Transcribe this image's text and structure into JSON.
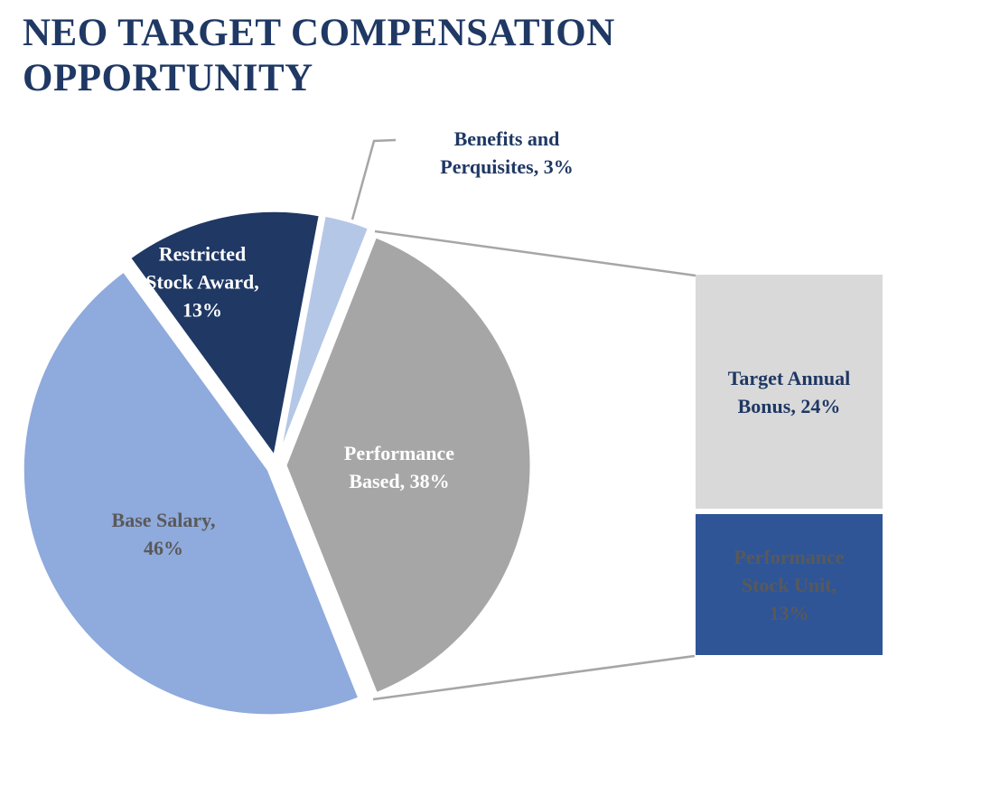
{
  "chart_data": {
    "type": "pie",
    "title": "NEO TARGET COMPENSATION\nOPPORTUNITY",
    "title_color": "#1F3864",
    "start_angle_deg": 21.5,
    "legend_position": "none",
    "slices": [
      {
        "label": "Performance Based",
        "value": 38,
        "color": "#A6A6A6",
        "display": "Performance\nBased, 38%",
        "text_color": "#FFFFFF"
      },
      {
        "label": "Base Salary",
        "value": 46,
        "color": "#8FAADC",
        "display": "Base Salary,\n46%",
        "text_color": "#595959"
      },
      {
        "label": "Restricted Stock Award",
        "value": 13,
        "color": "#1F3864",
        "display": "Restricted\nStock Award,\n13%",
        "text_color": "#FFFFFF"
      },
      {
        "label": "Benefits and Perquisites",
        "value": 3,
        "color": "#B4C7E7",
        "display": "Benefits and\nPerquisites, 3%",
        "text_color": "#1F3864"
      }
    ],
    "breakdown": {
      "parent_label": "Performance Based",
      "type": "stacked-bar",
      "segments": [
        {
          "label": "Target Annual Bonus",
          "value": 24,
          "color": "#D9D9D9",
          "display": "Target Annual\nBonus, 24%",
          "text_color": "#1F3864"
        },
        {
          "label": "Performance Stock Unit",
          "value": 13,
          "color": "#2F5597",
          "display": "Performance\nStock Unit,\n13%",
          "text_color": "#595959"
        }
      ]
    },
    "connector_color": "#A6A6A6"
  }
}
